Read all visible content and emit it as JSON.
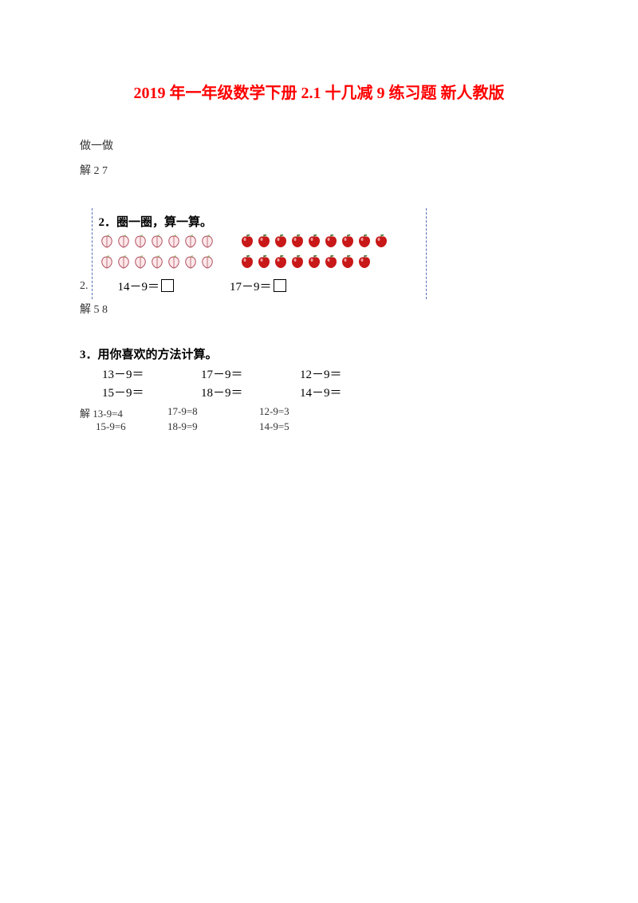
{
  "title": "2019 年一年级数学下册 2.1 十几减 9 练习题 新人教版",
  "do_label": "做一做",
  "ans1_label": "解 2   7",
  "q2": {
    "index": "2.",
    "title": "2．圈一圈，算一算。",
    "left_eq": "14－9＝",
    "right_eq": "17－9＝",
    "peach": {
      "row1": 7,
      "row2": 7,
      "color_outline": "#b05060",
      "color_fill": "#fde8ea",
      "leaf": "#7fb24a"
    },
    "apple": {
      "row1": 9,
      "row2": 8,
      "color_fill": "#c81818",
      "color_shine": "#ffd9d9",
      "leaf": "#2b7a1f"
    },
    "answer": "解  5  8"
  },
  "q3": {
    "title": "3．用你喜欢的方法计算。",
    "rows": [
      [
        "13－9＝",
        "17－9＝",
        "12－9＝"
      ],
      [
        "15－9＝",
        "18－9＝",
        "14－9＝"
      ]
    ],
    "ans_label": "解",
    "ans_rows": [
      [
        "13-9=4",
        "17-9=8",
        "12-9=3"
      ],
      [
        "15-9=6",
        "18-9=9",
        "14-9=5"
      ]
    ]
  }
}
